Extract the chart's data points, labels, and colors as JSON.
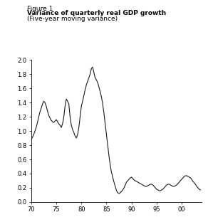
{
  "title_line1": "Figure 1",
  "title_line2": "Variance of quarterly real GDP growth",
  "title_line3": "(Five-year moving variance)",
  "xlim": [
    70,
    104
  ],
  "ylim": [
    0.0,
    2.0
  ],
  "xticks": [
    70,
    75,
    80,
    85,
    90,
    95,
    100
  ],
  "xtick_labels": [
    "70",
    "75",
    "80",
    "85",
    "90",
    "95",
    "00"
  ],
  "yticks": [
    0.0,
    0.2,
    0.4,
    0.6,
    0.8,
    1.0,
    1.2,
    1.4,
    1.6,
    1.8,
    2.0
  ],
  "line_color": "#1a1a1a",
  "background_color": "#ffffff",
  "x": [
    70.0,
    70.25,
    70.5,
    70.75,
    71.0,
    71.25,
    71.5,
    71.75,
    72.0,
    72.25,
    72.5,
    72.75,
    73.0,
    73.25,
    73.5,
    73.75,
    74.0,
    74.25,
    74.5,
    74.75,
    75.0,
    75.25,
    75.5,
    75.75,
    76.0,
    76.25,
    76.5,
    76.75,
    77.0,
    77.25,
    77.5,
    77.75,
    78.0,
    78.25,
    78.5,
    78.75,
    79.0,
    79.25,
    79.5,
    79.75,
    80.0,
    80.25,
    80.5,
    80.75,
    81.0,
    81.25,
    81.5,
    81.75,
    82.0,
    82.25,
    82.5,
    82.75,
    83.0,
    83.25,
    83.5,
    83.75,
    84.0,
    84.25,
    84.5,
    84.75,
    85.0,
    85.25,
    85.5,
    85.75,
    86.0,
    86.25,
    86.5,
    86.75,
    87.0,
    87.25,
    87.5,
    87.75,
    88.0,
    88.25,
    88.5,
    88.75,
    89.0,
    89.25,
    89.5,
    89.75,
    90.0,
    90.25,
    90.5,
    90.75,
    91.0,
    91.25,
    91.5,
    91.75,
    92.0,
    92.25,
    92.5,
    92.75,
    93.0,
    93.25,
    93.5,
    93.75,
    94.0,
    94.25,
    94.5,
    94.75,
    95.0,
    95.25,
    95.5,
    95.75,
    96.0,
    96.25,
    96.5,
    96.75,
    97.0,
    97.25,
    97.5,
    97.75,
    98.0,
    98.25,
    98.5,
    98.75,
    99.0,
    99.25,
    99.5,
    99.75,
    100.0,
    100.25,
    100.5,
    100.75,
    101.0,
    101.25,
    101.5,
    101.75,
    102.0,
    102.25,
    102.5,
    102.75,
    103.0,
    103.25,
    103.5,
    103.75
  ],
  "y": [
    0.88,
    0.91,
    0.95,
    1.0,
    1.05,
    1.12,
    1.2,
    1.27,
    1.32,
    1.38,
    1.42,
    1.4,
    1.35,
    1.28,
    1.22,
    1.18,
    1.15,
    1.13,
    1.12,
    1.14,
    1.16,
    1.13,
    1.1,
    1.08,
    1.05,
    1.1,
    1.2,
    1.35,
    1.45,
    1.42,
    1.38,
    1.2,
    1.08,
    1.02,
    0.98,
    0.93,
    0.9,
    0.95,
    1.05,
    1.2,
    1.35,
    1.42,
    1.5,
    1.58,
    1.65,
    1.7,
    1.75,
    1.8,
    1.88,
    1.9,
    1.82,
    1.75,
    1.72,
    1.68,
    1.62,
    1.55,
    1.48,
    1.38,
    1.25,
    1.1,
    0.95,
    0.8,
    0.65,
    0.52,
    0.42,
    0.35,
    0.28,
    0.22,
    0.16,
    0.13,
    0.12,
    0.13,
    0.15,
    0.17,
    0.2,
    0.24,
    0.28,
    0.3,
    0.32,
    0.34,
    0.35,
    0.33,
    0.31,
    0.3,
    0.29,
    0.28,
    0.27,
    0.26,
    0.25,
    0.24,
    0.23,
    0.22,
    0.22,
    0.23,
    0.24,
    0.25,
    0.25,
    0.24,
    0.22,
    0.2,
    0.18,
    0.17,
    0.16,
    0.16,
    0.17,
    0.18,
    0.2,
    0.22,
    0.24,
    0.25,
    0.25,
    0.24,
    0.23,
    0.22,
    0.22,
    0.23,
    0.24,
    0.26,
    0.28,
    0.3,
    0.32,
    0.34,
    0.36,
    0.37,
    0.37,
    0.36,
    0.35,
    0.34,
    0.32,
    0.29,
    0.27,
    0.25,
    0.22,
    0.2,
    0.18,
    0.17
  ],
  "title1_fontsize": 6.5,
  "title2_fontsize": 6.5,
  "title3_fontsize": 6.5,
  "tick_fontsize": 6.0
}
